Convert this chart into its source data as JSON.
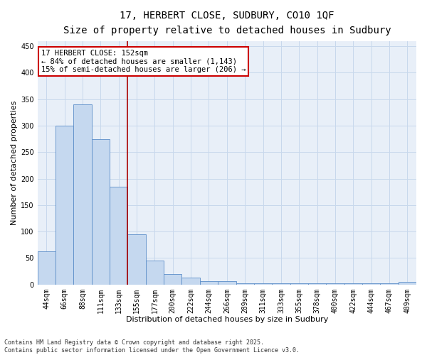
{
  "title_line1": "17, HERBERT CLOSE, SUDBURY, CO10 1QF",
  "title_line2": "Size of property relative to detached houses in Sudbury",
  "xlabel": "Distribution of detached houses by size in Sudbury",
  "ylabel": "Number of detached properties",
  "categories": [
    "44sqm",
    "66sqm",
    "88sqm",
    "111sqm",
    "133sqm",
    "155sqm",
    "177sqm",
    "200sqm",
    "222sqm",
    "244sqm",
    "266sqm",
    "289sqm",
    "311sqm",
    "333sqm",
    "355sqm",
    "378sqm",
    "400sqm",
    "422sqm",
    "444sqm",
    "467sqm",
    "489sqm"
  ],
  "values": [
    62,
    300,
    340,
    275,
    185,
    95,
    45,
    20,
    13,
    7,
    6,
    2,
    2,
    2,
    2,
    2,
    2,
    2,
    2,
    2,
    5
  ],
  "bar_color": "#c5d8ef",
  "bar_edge_color": "#5b8dc8",
  "vline_color": "#aa0000",
  "annotation_text": "17 HERBERT CLOSE: 152sqm\n← 84% of detached houses are smaller (1,143)\n15% of semi-detached houses are larger (206) →",
  "annotation_box_color": "#ffffff",
  "annotation_box_edge_color": "#cc0000",
  "ylim": [
    0,
    460
  ],
  "yticks": [
    0,
    50,
    100,
    150,
    200,
    250,
    300,
    350,
    400,
    450
  ],
  "grid_color": "#c8d8ec",
  "background_color": "#e8eff8",
  "footer_line1": "Contains HM Land Registry data © Crown copyright and database right 2025.",
  "footer_line2": "Contains public sector information licensed under the Open Government Licence v3.0.",
  "title_fontsize": 10,
  "subtitle_fontsize": 9,
  "axis_label_fontsize": 8,
  "tick_fontsize": 7,
  "annotation_fontsize": 7.5,
  "footer_fontsize": 6
}
